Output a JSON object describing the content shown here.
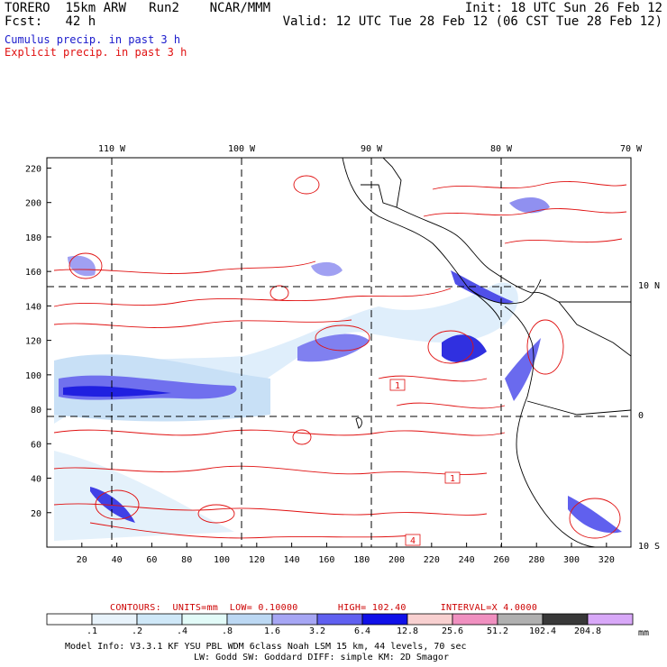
{
  "header": {
    "model": "TORERO",
    "resolution": "15km ARW",
    "run": "Run2",
    "org": "NCAR/MMM",
    "init": "Init: 18 UTC Sun 26 Feb 12",
    "fcst_label": "Fcst:",
    "fcst_value": "42 h",
    "valid": "Valid: 12 UTC Tue 28 Feb 12 (06 CST Tue 28 Feb 12)",
    "field_cumulus": "Cumulus precip. in past 3 h",
    "field_explicit": "Explicit precip. in past 3 h"
  },
  "map": {
    "longitude_labels": [
      "110 W",
      "100 W",
      "90 W",
      "80 W",
      "70 W"
    ],
    "latitude_labels": [
      "10 N",
      "0",
      "10 S"
    ],
    "grid_x_ticks": [
      "20",
      "40",
      "60",
      "80",
      "100",
      "120",
      "140",
      "160",
      "180",
      "200",
      "220",
      "240",
      "260",
      "280",
      "300",
      "320"
    ],
    "grid_y_ticks": [
      "220",
      "200",
      "180",
      "160",
      "140",
      "120",
      "100",
      "80",
      "60",
      "40",
      "20"
    ],
    "contour_labels": [
      "1",
      "1",
      "4"
    ]
  },
  "contours": {
    "label": "CONTOURS:",
    "units": "UNITS=mm",
    "low": "LOW= 0.10000",
    "high": "HIGH= 102.40",
    "interval": "INTERVAL=X  4.0000"
  },
  "legend": {
    "values": [
      ".1",
      ".2",
      ".4",
      ".8",
      "1.6",
      "3.2",
      "6.4",
      "12.8",
      "25.6",
      "51.2",
      "102.4",
      "204.8"
    ],
    "unit": "mm",
    "colors": [
      "#ffffff",
      "#e8f3fb",
      "#cfe8f8",
      "#e2fbf8",
      "#bcd8f3",
      "#a6a6f4",
      "#6060f0",
      "#1010e8",
      "#f8d0d0",
      "#f090c0",
      "#b0b0b0",
      "#383838",
      "#d8a8f8"
    ]
  },
  "model_info": {
    "line1": "Model Info: V3.3.1   KF     YSU PBL  WDM 6class  Noah LSM  15 km,   44 levels,   70 sec",
    "line2": "LW: Godd SW: Goddard DIFF: simple KM: 2D Smagor"
  },
  "colors": {
    "cumulus_text": "#1a1acc",
    "explicit_text": "#e01010",
    "contour": "#e01010",
    "coastline": "#000000"
  }
}
